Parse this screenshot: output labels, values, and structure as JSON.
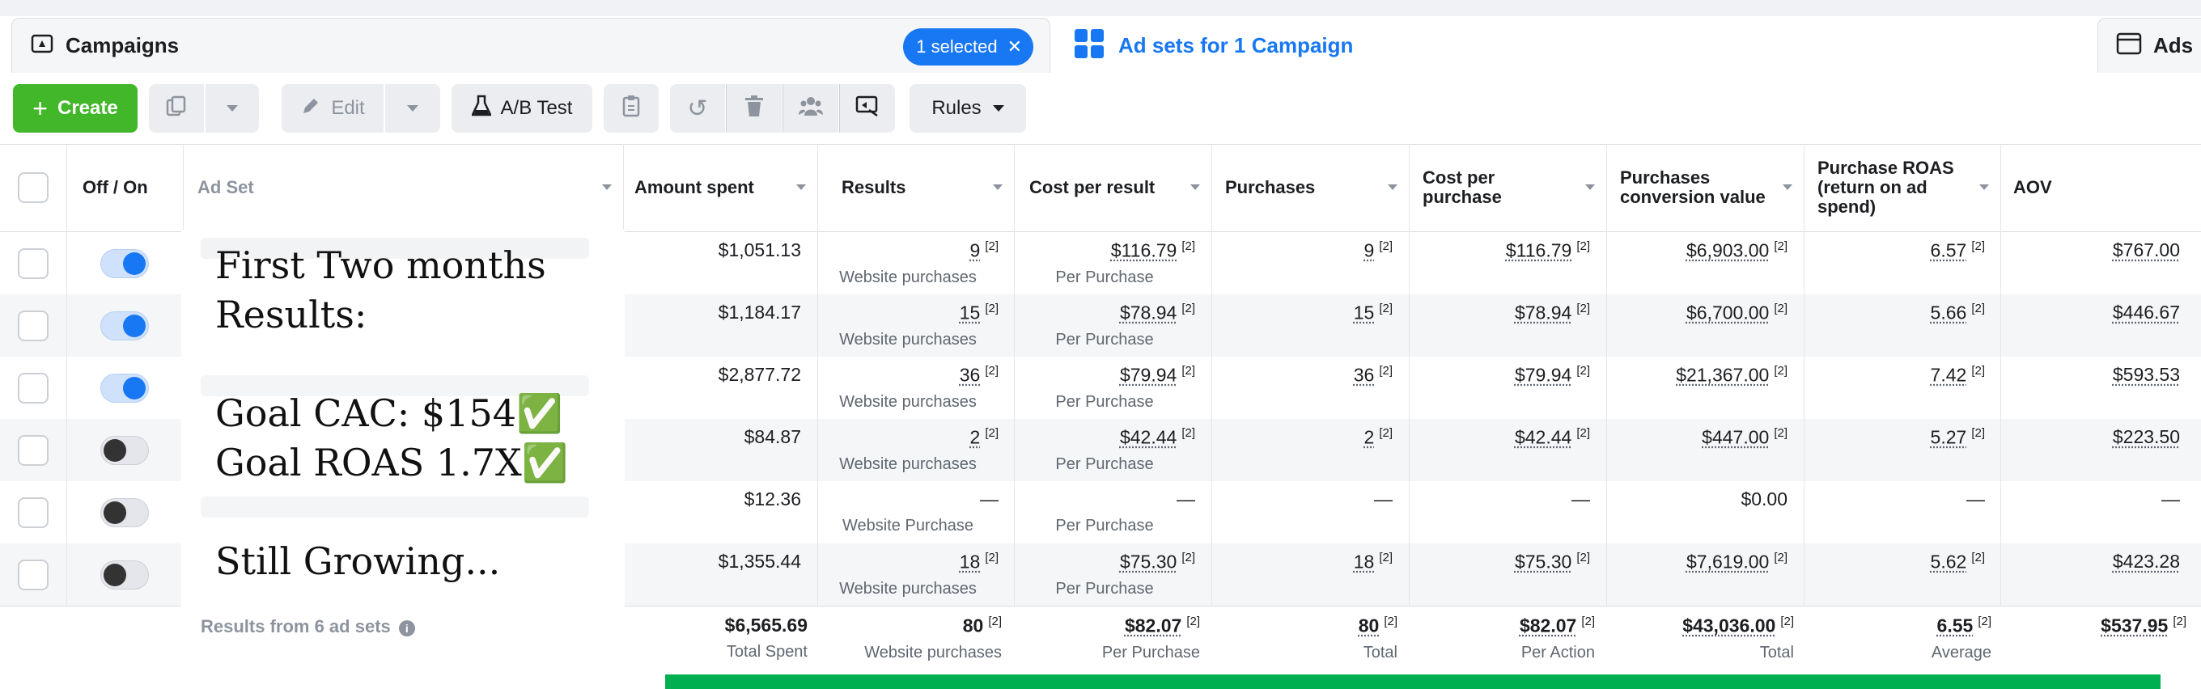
{
  "tabs": {
    "campaigns": {
      "label": "Campaigns",
      "selected_pill": "1 selected"
    },
    "adsets": {
      "label": "Ad sets for 1 Campaign"
    },
    "ads": {
      "label": "Ads"
    }
  },
  "toolbar": {
    "create": "Create",
    "edit": "Edit",
    "ab_test": "A/B Test",
    "rules": "Rules"
  },
  "columns": [
    "Off / On",
    "Ad Set",
    "Amount spent",
    "Results",
    "Cost per result",
    "Purchases",
    "Cost per\npurchase",
    "Purchases\nconversion value",
    "Purchase ROAS\n(return on ad\nspend)",
    "AOV"
  ],
  "rows": [
    {
      "on": true,
      "amount": "$1,051.13",
      "results": "9",
      "results_note": "[2]",
      "results_label": "Website purchases",
      "cpr": "$116.79",
      "cpr_label": "Per Purchase",
      "purchases": "9",
      "cpp": "$116.79",
      "pcv": "$6,903.00",
      "roas": "6.57",
      "aov": "$767.00"
    },
    {
      "on": true,
      "amount": "$1,184.17",
      "results": "15",
      "results_note": "[2]",
      "results_label": "Website purchases",
      "cpr": "$78.94",
      "cpr_label": "Per Purchase",
      "purchases": "15",
      "cpp": "$78.94",
      "pcv": "$6,700.00",
      "roas": "5.66",
      "aov": "$446.67"
    },
    {
      "on": true,
      "amount": "$2,877.72",
      "results": "36",
      "results_note": "[2]",
      "results_label": "Website purchases",
      "cpr": "$79.94",
      "cpr_label": "Per Purchase",
      "purchases": "36",
      "cpp": "$79.94",
      "pcv": "$21,367.00",
      "roas": "7.42",
      "aov": "$593.53"
    },
    {
      "on": false,
      "amount": "$84.87",
      "results": "2",
      "results_note": "[2]",
      "results_label": "Website purchases",
      "cpr": "$42.44",
      "cpr_label": "Per Purchase",
      "purchases": "2",
      "cpp": "$42.44",
      "pcv": "$447.00",
      "roas": "5.27",
      "aov": "$223.50"
    },
    {
      "on": false,
      "amount": "$12.36",
      "results": "—",
      "results_note": "",
      "results_label": "Website Purchase",
      "cpr": "—",
      "cpr_label": "Per Purchase",
      "purchases": "—",
      "cpp": "—",
      "pcv": "$0.00",
      "roas": "—",
      "aov": "—"
    },
    {
      "on": false,
      "amount": "$1,355.44",
      "results": "18",
      "results_note": "[2]",
      "results_label": "Website purchases",
      "cpr": "$75.30",
      "cpr_label": "Per Purchase",
      "purchases": "18",
      "cpp": "$75.30",
      "pcv": "$7,619.00",
      "roas": "5.62",
      "aov": "$423.28"
    }
  ],
  "totals": {
    "label": "Results from 6 ad sets",
    "amount": "$6,565.69",
    "amount_label": "Total Spent",
    "results": "80",
    "results_label": "Website purchases",
    "cpr": "$82.07",
    "cpr_label": "Per Purchase",
    "purchases": "80",
    "purchases_label": "Total",
    "cpp": "$82.07",
    "cpp_label": "Per Action",
    "pcv": "$43,036.00",
    "pcv_label": "Total",
    "roas": "6.55",
    "roas_label": "Average",
    "aov": "$537.95",
    "note": "[2]"
  },
  "overlay": {
    "text": "First Two months\nResults:\n\nGoal CAC: $154✅\nGoal ROAS 1.7X✅\n\nStill Growing..."
  },
  "colors": {
    "accent": "#1877f2",
    "create": "#42b72a",
    "bar": "#00b050"
  }
}
